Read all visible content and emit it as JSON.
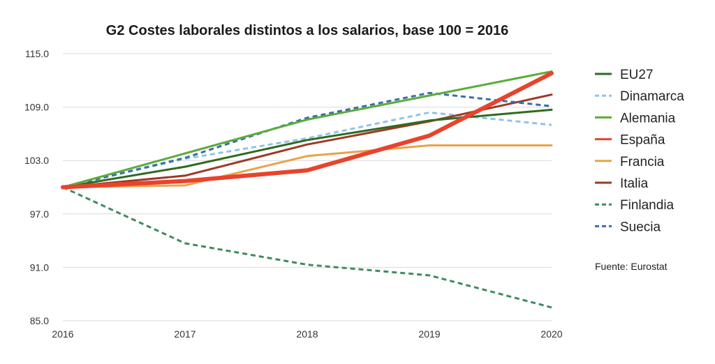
{
  "chart_data": {
    "type": "line",
    "title": "G2 Costes laborales distintos a los salarios, base 100 = 2016",
    "x": [
      "2016",
      "2017",
      "2018",
      "2019",
      "2020"
    ],
    "ylim": [
      85.0,
      115.0
    ],
    "yticks": [
      "85.0",
      "91.0",
      "97.0",
      "103.0",
      "109.0",
      "115.0"
    ],
    "grid": true,
    "legend_position": "right",
    "series": [
      {
        "name": "EU27",
        "values": [
          100.0,
          102.3,
          105.3,
          107.5,
          108.7
        ],
        "color": "#2e6b1f",
        "dashed": false,
        "width": 3
      },
      {
        "name": "Dinamarca",
        "values": [
          100.0,
          103.2,
          105.5,
          108.4,
          107.0
        ],
        "color": "#8fc3e8",
        "dashed": true,
        "width": 3
      },
      {
        "name": "Alemania",
        "values": [
          100.0,
          103.8,
          107.6,
          110.3,
          113.0
        ],
        "color": "#5aac3a",
        "dashed": false,
        "width": 3
      },
      {
        "name": "España",
        "values": [
          100.0,
          100.7,
          101.9,
          105.8,
          112.8
        ],
        "color": "#e8432d",
        "dashed": false,
        "width": 6
      },
      {
        "name": "Francia",
        "values": [
          100.0,
          100.2,
          103.5,
          104.7,
          104.7
        ],
        "color": "#e8a34a",
        "dashed": false,
        "width": 3
      },
      {
        "name": "Italia",
        "values": [
          100.0,
          101.3,
          104.8,
          107.4,
          110.4
        ],
        "color": "#9b3a26",
        "dashed": false,
        "width": 3
      },
      {
        "name": "Finlandia",
        "values": [
          100.0,
          93.7,
          91.3,
          90.1,
          86.5
        ],
        "color": "#3f8a60",
        "dashed": true,
        "width": 3
      },
      {
        "name": "Suecia",
        "values": [
          100.0,
          103.3,
          107.8,
          110.6,
          109.1
        ],
        "color": "#3a6ea8",
        "dashed": true,
        "width": 3
      }
    ],
    "source": "Fuente: Eurostat"
  }
}
